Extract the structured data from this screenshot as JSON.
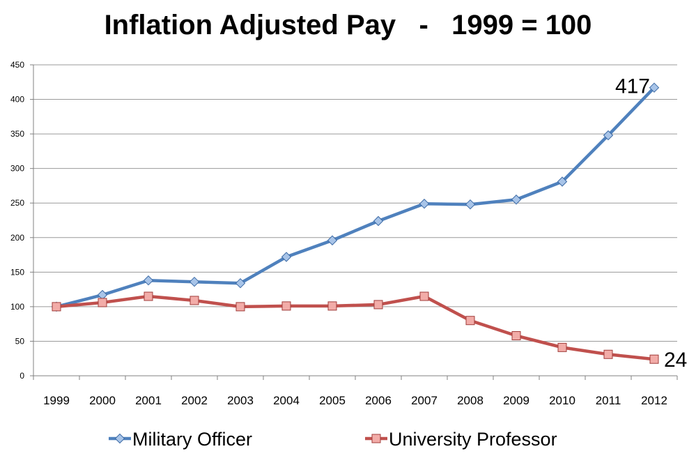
{
  "chart_data": {
    "type": "line",
    "title": "Inflation Adjusted Pay   -   1999 = 100",
    "xlabel": "",
    "ylabel": "",
    "categories": [
      "1999",
      "2000",
      "2001",
      "2002",
      "2003",
      "2004",
      "2005",
      "2006",
      "2007",
      "2008",
      "2009",
      "2010",
      "2011",
      "2012"
    ],
    "ylim": [
      0,
      450
    ],
    "yticks": [
      0,
      50,
      100,
      150,
      200,
      250,
      300,
      350,
      400,
      450
    ],
    "grid": true,
    "legend_position": "bottom",
    "series": [
      {
        "name": "Military Officer",
        "color": "#4f81bd",
        "marker": "diamond",
        "values": [
          100,
          117,
          138,
          136,
          134,
          172,
          196,
          224,
          249,
          248,
          255,
          281,
          348,
          417
        ],
        "end_label": "417"
      },
      {
        "name": "University Professor",
        "color": "#c0504d",
        "marker": "square",
        "values": [
          100,
          106,
          115,
          109,
          100,
          101,
          101,
          103,
          115,
          80,
          58,
          41,
          31,
          24
        ],
        "end_label": "24"
      }
    ]
  }
}
